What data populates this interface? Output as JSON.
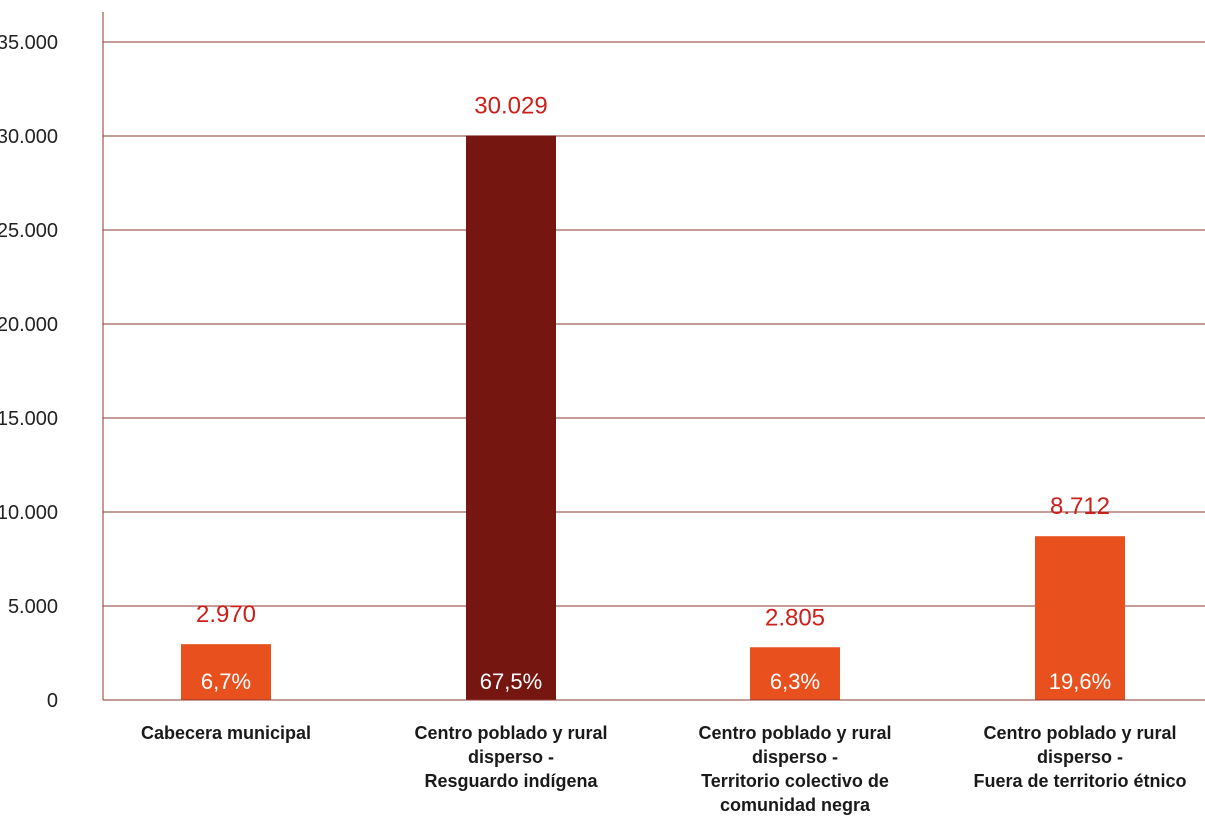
{
  "colors": {
    "gridline": "#8b3a2f",
    "axis": "#8b3a2f",
    "bar_primary": "#e8501e",
    "bar_highlight": "#761610",
    "value_text": "#cc1f1a",
    "pct_text": "#ffffff"
  },
  "chart_data": {
    "type": "bar",
    "ylim": [
      0,
      35000
    ],
    "y_ticks": [
      0,
      5000,
      10000,
      15000,
      20000,
      25000,
      30000,
      35000
    ],
    "y_tick_labels": [
      "0",
      "5.000",
      "10.000",
      "15.000",
      "20.000",
      "25.000",
      "30.000",
      "35.000"
    ],
    "grid": true,
    "categories": [
      "Cabecera municipal",
      "Centro poblado y rural disperso - Resguardo indígena",
      "Centro poblado y rural disperso - Territorio colectivo de comunidad negra",
      "Centro poblado y rural disperso - Fuera de territorio étnico"
    ],
    "category_label_lines": [
      [
        "Cabecera municipal"
      ],
      [
        "Centro poblado y rural",
        "disperso -",
        "Resguardo indígena"
      ],
      [
        "Centro poblado y rural",
        "disperso -",
        "Territorio colectivo de",
        "comunidad negra"
      ],
      [
        "Centro poblado y rural",
        "disperso -",
        "Fuera de territorio étnico"
      ]
    ],
    "values": [
      2970,
      30029,
      2805,
      8712
    ],
    "value_labels": [
      "2.970",
      "30.029",
      "2.805",
      "8.712"
    ],
    "percent_labels": [
      "6,7%",
      "67,5%",
      "6,3%",
      "19,6%"
    ],
    "highlight_index": 1
  }
}
